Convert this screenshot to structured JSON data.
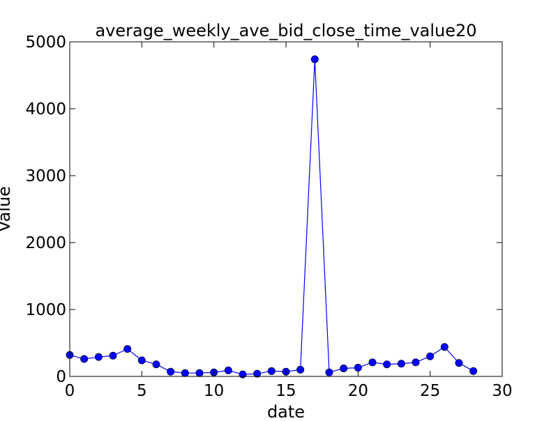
{
  "chart_data": {
    "type": "line",
    "title": "average_weekly_ave_bid_close_time_value20",
    "xlabel": "date",
    "ylabel": "Value",
    "xlim": [
      0,
      30
    ],
    "ylim": [
      0,
      5000
    ],
    "xticks": [
      0,
      5,
      10,
      15,
      20,
      25,
      30
    ],
    "yticks": [
      0,
      1000,
      2000,
      3000,
      4000,
      5000
    ],
    "grid": false,
    "line_color": "#0000ff",
    "marker": "circle",
    "series": [
      {
        "x": [
          0,
          1,
          2,
          3,
          4,
          5,
          6,
          7,
          8,
          9,
          10,
          11,
          12,
          13,
          14,
          15,
          16,
          17,
          18,
          19,
          20,
          21,
          22,
          23,
          24,
          25,
          26,
          27,
          28
        ],
        "values": [
          320,
          260,
          290,
          310,
          410,
          240,
          180,
          70,
          50,
          50,
          60,
          90,
          30,
          40,
          80,
          70,
          100,
          4740,
          60,
          120,
          130,
          210,
          180,
          190,
          210,
          300,
          440,
          200,
          80
        ]
      }
    ]
  }
}
